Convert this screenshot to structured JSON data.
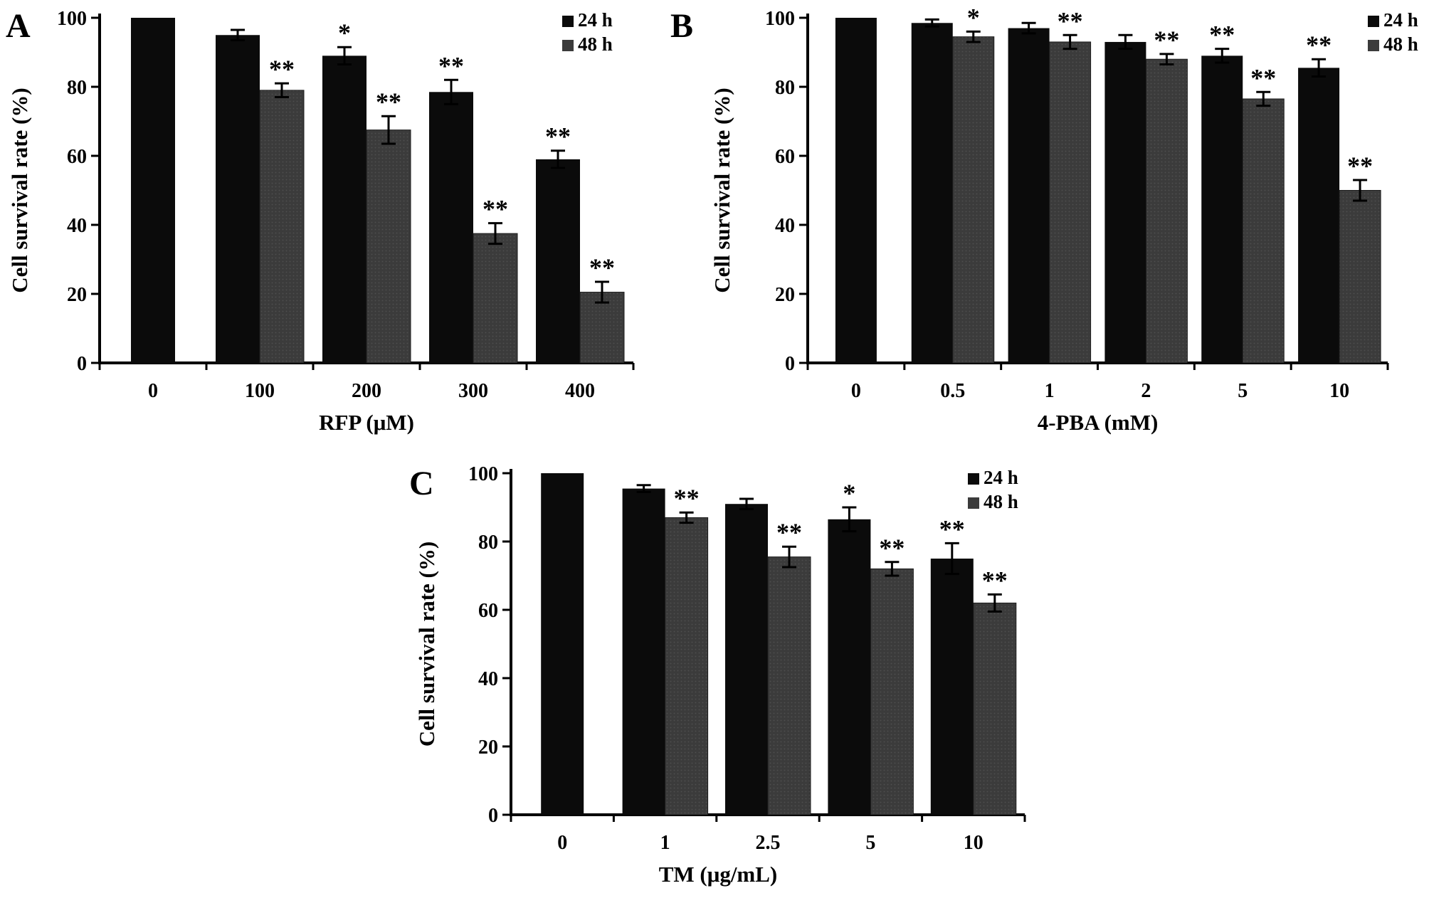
{
  "figure": {
    "background": "#ffffff",
    "colors": {
      "series_24h": "#0b0b0b",
      "series_48h": "#3b3b3b",
      "texture_dot": "#4f4f4f",
      "axis": "#000000",
      "text": "#000000"
    }
  },
  "chart_data": [
    {
      "panel": "A",
      "type": "bar",
      "title": "",
      "ylabel": "Cell survival rate (%)",
      "xlabel": "RFP  (μM)",
      "ylim": [
        0,
        100
      ],
      "yticks": [
        0,
        20,
        40,
        60,
        80,
        100
      ],
      "categories": [
        "0",
        "100",
        "200",
        "300",
        "400"
      ],
      "legend": [
        "24 h",
        "48 h"
      ],
      "legend_position": "top-right",
      "grid": false,
      "series": [
        {
          "name": "24 h",
          "values": [
            100,
            95,
            89,
            78.5,
            59
          ],
          "errors": [
            0,
            1.5,
            2.5,
            3.5,
            2.5
          ],
          "sig": [
            "",
            "",
            "*",
            "**",
            "**"
          ]
        },
        {
          "name": "48 h",
          "values": [
            null,
            79,
            67.5,
            37.5,
            20.5
          ],
          "errors": [
            null,
            2,
            4,
            3,
            3
          ],
          "sig": [
            "",
            "**",
            "**",
            "**",
            "**"
          ]
        }
      ]
    },
    {
      "panel": "B",
      "type": "bar",
      "title": "",
      "ylabel": "Cell survival rate (%)",
      "xlabel": "4-PBA  (mM)",
      "ylim": [
        0,
        100
      ],
      "yticks": [
        0,
        20,
        40,
        60,
        80,
        100
      ],
      "categories": [
        "0",
        "0.5",
        "1",
        "2",
        "5",
        "10"
      ],
      "legend": [
        "24 h",
        "48 h"
      ],
      "legend_position": "top-right",
      "grid": false,
      "series": [
        {
          "name": "24 h",
          "values": [
            100,
            98.5,
            97,
            93,
            89,
            85.5
          ],
          "errors": [
            0,
            1,
            1.5,
            2,
            2,
            2.5
          ],
          "sig": [
            "",
            "",
            "",
            "",
            "**",
            "**"
          ]
        },
        {
          "name": "48 h",
          "values": [
            null,
            94.5,
            93,
            88,
            76.5,
            50
          ],
          "errors": [
            null,
            1.5,
            2,
            1.5,
            2,
            3
          ],
          "sig": [
            "",
            "*",
            "**",
            "**",
            "**",
            "**"
          ]
        }
      ]
    },
    {
      "panel": "C",
      "type": "bar",
      "title": "",
      "ylabel": "Cell survival rate (%)",
      "xlabel": "TM (μg/mL)",
      "ylim": [
        0,
        100
      ],
      "yticks": [
        0,
        20,
        40,
        60,
        80,
        100
      ],
      "categories": [
        "0",
        "1",
        "2.5",
        "5",
        "10"
      ],
      "legend": [
        "24 h",
        "48 h"
      ],
      "legend_position": "top-right",
      "grid": false,
      "series": [
        {
          "name": "24 h",
          "values": [
            100,
            95.5,
            91,
            86.5,
            75
          ],
          "errors": [
            0,
            1,
            1.5,
            3.5,
            4.5
          ],
          "sig": [
            "",
            "",
            "",
            "*",
            "**"
          ]
        },
        {
          "name": "48 h",
          "values": [
            null,
            87,
            75.5,
            72,
            62
          ],
          "errors": [
            null,
            1.5,
            3,
            2,
            2.5
          ],
          "sig": [
            "",
            "**",
            "**",
            "**",
            "**"
          ]
        }
      ]
    }
  ]
}
